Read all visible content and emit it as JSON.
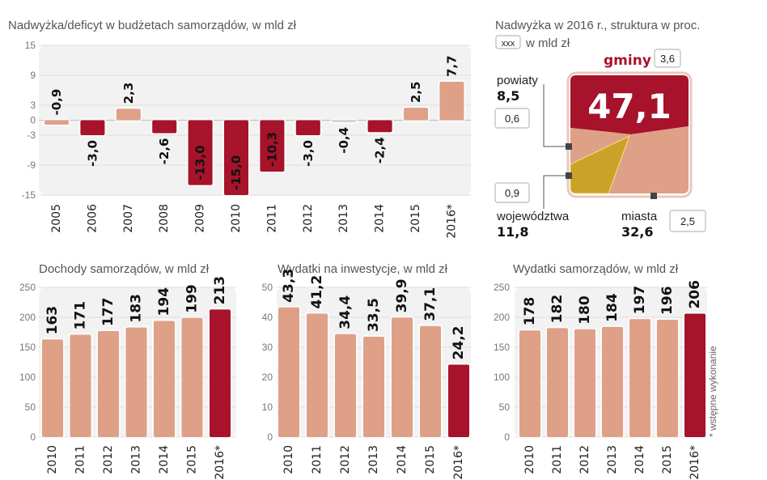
{
  "colors": {
    "dark_red": "#a6132b",
    "light": "#dfa088",
    "neutral": "#d6d0ce",
    "gold": "#c9a227",
    "plot_bg": "#f2f2f2"
  },
  "footnote": "* wstępne wykonanie",
  "chart_data": [
    {
      "type": "bar",
      "title": "Nadwyżka/deficyt w budżetach samorządów, w mld zł",
      "categories": [
        "2005",
        "2006",
        "2007",
        "2008",
        "2009",
        "2010",
        "2011",
        "2012",
        "2013",
        "2014",
        "2015",
        "2016*"
      ],
      "values": [
        -0.9,
        -3.0,
        2.3,
        -2.6,
        -13.0,
        -15.0,
        -10.3,
        -3.0,
        -0.4,
        -2.4,
        2.5,
        7.7
      ],
      "value_labels": [
        "-0,9",
        "-3,0",
        "2,3",
        "-2,6",
        "-13,0",
        "-15,0",
        "-10,3",
        "-3,0",
        "-0,4",
        "-2,4",
        "2,5",
        "7,7"
      ],
      "bar_colors": [
        "light",
        "dark_red",
        "light",
        "dark_red",
        "dark_red",
        "dark_red",
        "dark_red",
        "dark_red",
        "neutral",
        "dark_red",
        "light",
        "light"
      ],
      "yticks": [
        "15",
        "9",
        "3",
        "0",
        "-3",
        "-9",
        "-15"
      ],
      "ytick_values": [
        15,
        9,
        3,
        0,
        -3,
        -9,
        -15
      ],
      "ylim": [
        -15,
        15
      ],
      "grid": true
    },
    {
      "type": "table",
      "title": "Nadwyżka w 2016 r., struktura w proc.",
      "legend_box": "xxx",
      "legend_text": "w mld zł",
      "segments": [
        {
          "name": "gminy",
          "percent": "47,1",
          "amount": "3,6",
          "color": "dark_red"
        },
        {
          "name": "powiaty",
          "percent": "8,5",
          "amount": "0,6",
          "color": "light"
        },
        {
          "name": "województwa",
          "percent": "11,8",
          "amount": "0,9",
          "color": "gold"
        },
        {
          "name": "miasta",
          "percent": "32,6",
          "amount": "2,5",
          "color": "light"
        }
      ]
    },
    {
      "type": "bar",
      "title": "Dochody samorządów, w mld zł",
      "categories": [
        "2010",
        "2011",
        "2012",
        "2013",
        "2014",
        "2015",
        "2016*"
      ],
      "values": [
        163,
        171,
        177,
        183,
        194,
        199,
        213
      ],
      "value_labels": [
        "163",
        "171",
        "177",
        "183",
        "194",
        "199",
        "213"
      ],
      "yticks": [
        "250",
        "200",
        "150",
        "100",
        "50",
        "0"
      ],
      "ytick_values": [
        250,
        200,
        150,
        100,
        50,
        0
      ],
      "ylim": [
        0,
        250
      ],
      "grid": true
    },
    {
      "type": "bar",
      "title": "Wydatki na inwestycje, w mld zł",
      "categories": [
        "2010",
        "2011",
        "2012",
        "2013",
        "2014",
        "2015",
        "2016*"
      ],
      "values": [
        43.3,
        41.2,
        34.4,
        33.5,
        39.9,
        37.1,
        24.2
      ],
      "value_labels": [
        "43,3",
        "41,2",
        "34,4",
        "33,5",
        "39,9",
        "37,1",
        "24,2"
      ],
      "yticks": [
        "50",
        "40",
        "30",
        "20",
        "10",
        "0"
      ],
      "ytick_values": [
        50,
        40,
        30,
        20,
        10,
        0
      ],
      "ylim": [
        0,
        50
      ],
      "grid": true
    },
    {
      "type": "bar",
      "title": "Wydatki samorządów, w mld zł",
      "categories": [
        "2010",
        "2011",
        "2012",
        "2013",
        "2014",
        "2015",
        "2016*"
      ],
      "values": [
        178,
        182,
        180,
        184,
        197,
        196,
        206
      ],
      "value_labels": [
        "178",
        "182",
        "180",
        "184",
        "197",
        "196",
        "206"
      ],
      "yticks": [
        "250",
        "200",
        "150",
        "100",
        "50",
        "0"
      ],
      "ytick_values": [
        250,
        200,
        150,
        100,
        50,
        0
      ],
      "ylim": [
        0,
        250
      ],
      "grid": true
    }
  ]
}
